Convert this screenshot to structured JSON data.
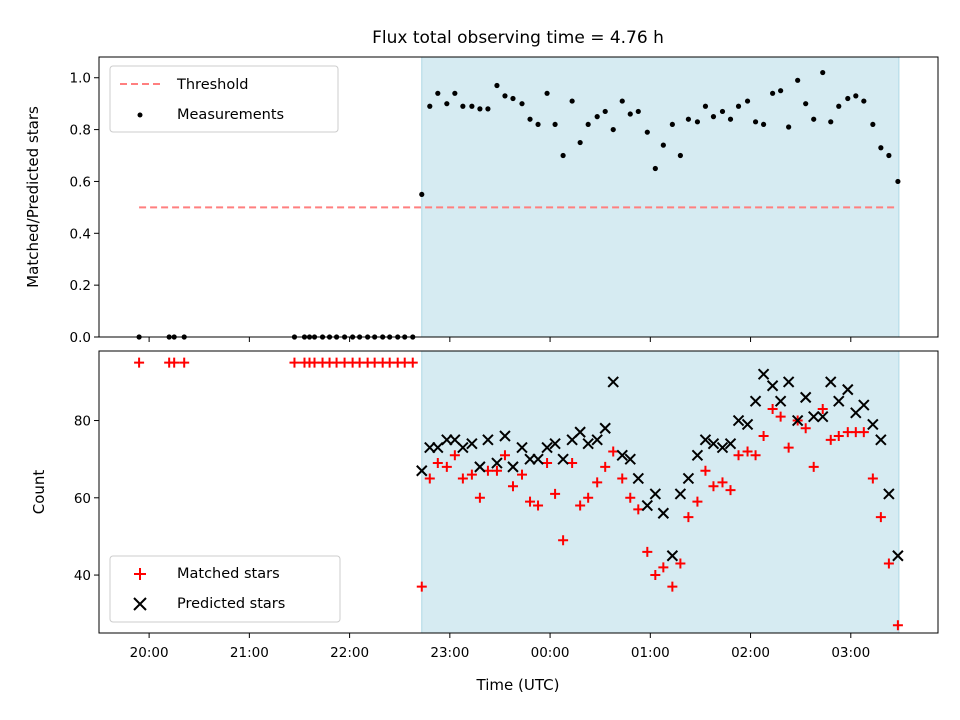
{
  "title": "Flux total observing time = 4.76 h",
  "xlabel": "Time (UTC)",
  "colors": {
    "threshold": "#ff7f7f",
    "shade": "#add8e6",
    "matched": "#ff0000",
    "predicted": "#000000",
    "measurement": "#000000"
  },
  "chart_data": [
    {
      "type": "scatter",
      "ylabel": "Matched/Predicted stars",
      "ylim": [
        0,
        1.08
      ],
      "y_ticks": [
        "0.0",
        "0.2",
        "0.4",
        "0.6",
        "0.8",
        "1.0"
      ],
      "x_unit": "hours",
      "xlim": [
        19.5,
        27.87
      ],
      "shaded_interval": [
        22.72,
        27.48
      ],
      "legend": {
        "position": "top-left",
        "entries": [
          "Threshold",
          "Measurements"
        ]
      },
      "threshold": {
        "name": "Threshold",
        "value": 0.5,
        "x_range": [
          19.9,
          27.45
        ]
      },
      "series": [
        {
          "name": "Measurements",
          "x": [
            19.9,
            20.2,
            20.25,
            20.35,
            21.45,
            21.55,
            21.6,
            21.65,
            21.73,
            21.8,
            21.87,
            21.95,
            22.03,
            22.1,
            22.18,
            22.25,
            22.33,
            22.4,
            22.48,
            22.55,
            22.63,
            22.72,
            22.8,
            22.88,
            22.97,
            23.05,
            23.13,
            23.22,
            23.3,
            23.38,
            23.47,
            23.55,
            23.63,
            23.72,
            23.8,
            23.88,
            23.97,
            24.05,
            24.13,
            24.22,
            24.3,
            24.38,
            24.47,
            24.55,
            24.63,
            24.72,
            24.8,
            24.88,
            24.97,
            25.05,
            25.13,
            25.22,
            25.3,
            25.38,
            25.47,
            25.55,
            25.63,
            25.72,
            25.8,
            25.88,
            25.97,
            26.05,
            26.13,
            26.22,
            26.3,
            26.38,
            26.47,
            26.55,
            26.63,
            26.72,
            26.8,
            26.88,
            26.97,
            27.05,
            27.13,
            27.22,
            27.3,
            27.38,
            27.47
          ],
          "y": [
            0,
            0,
            0,
            0,
            0,
            0,
            0,
            0,
            0,
            0,
            0,
            0,
            0,
            0,
            0,
            0,
            0,
            0,
            0,
            0,
            0,
            0.55,
            0.89,
            0.94,
            0.9,
            0.94,
            0.89,
            0.89,
            0.88,
            0.88,
            0.97,
            0.93,
            0.92,
            0.9,
            0.84,
            0.82,
            0.94,
            0.82,
            0.7,
            0.91,
            0.75,
            0.82,
            0.85,
            0.87,
            0.8,
            0.91,
            0.86,
            0.87,
            0.79,
            0.65,
            0.74,
            0.82,
            0.7,
            0.84,
            0.83,
            0.89,
            0.85,
            0.87,
            0.84,
            0.89,
            0.91,
            0.83,
            0.82,
            0.94,
            0.95,
            0.81,
            0.99,
            0.9,
            0.84,
            1.02,
            0.83,
            0.89,
            0.92,
            0.93,
            0.91,
            0.82,
            0.73,
            0.7,
            0.6
          ]
        }
      ]
    },
    {
      "type": "scatter",
      "ylabel": "Count",
      "ylim": [
        25,
        98
      ],
      "y_ticks": [
        "40",
        "60",
        "80"
      ],
      "x_ticks": [
        "20:00",
        "21:00",
        "22:00",
        "23:00",
        "00:00",
        "01:00",
        "02:00",
        "03:00"
      ],
      "x_unit": "hours",
      "xlim": [
        19.5,
        27.87
      ],
      "shaded_interval": [
        22.72,
        27.48
      ],
      "legend": {
        "position": "bottom-left",
        "entries": [
          "Matched stars",
          "Predicted stars"
        ]
      },
      "series": [
        {
          "name": "Matched stars",
          "x": [
            19.9,
            20.2,
            20.25,
            20.35,
            21.45,
            21.55,
            21.6,
            21.65,
            21.73,
            21.8,
            21.87,
            21.95,
            22.03,
            22.1,
            22.18,
            22.25,
            22.33,
            22.4,
            22.48,
            22.55,
            22.63,
            22.72,
            22.8,
            22.88,
            22.97,
            23.05,
            23.13,
            23.22,
            23.3,
            23.38,
            23.47,
            23.55,
            23.63,
            23.72,
            23.8,
            23.88,
            23.97,
            24.05,
            24.13,
            24.22,
            24.3,
            24.38,
            24.47,
            24.55,
            24.63,
            24.72,
            24.8,
            24.88,
            24.97,
            25.05,
            25.13,
            25.22,
            25.3,
            25.38,
            25.47,
            25.55,
            25.63,
            25.72,
            25.8,
            25.88,
            25.97,
            26.05,
            26.13,
            26.22,
            26.3,
            26.38,
            26.47,
            26.55,
            26.63,
            26.72,
            26.8,
            26.88,
            26.97,
            27.05,
            27.13,
            27.22,
            27.3,
            27.38,
            27.47
          ],
          "y": [
            95,
            95,
            95,
            95,
            95,
            95,
            95,
            95,
            95,
            95,
            95,
            95,
            95,
            95,
            95,
            95,
            95,
            95,
            95,
            95,
            95,
            37,
            65,
            69,
            68,
            71,
            65,
            66,
            60,
            67,
            67,
            71,
            63,
            66,
            59,
            58,
            69,
            61,
            49,
            69,
            58,
            60,
            64,
            68,
            72,
            65,
            60,
            57,
            46,
            40,
            42,
            37,
            43,
            55,
            59,
            67,
            63,
            64,
            62,
            71,
            72,
            71,
            76,
            83,
            81,
            73,
            80,
            78,
            68,
            83,
            75,
            76,
            77,
            77,
            77,
            65,
            55,
            43,
            27
          ]
        },
        {
          "name": "Predicted stars",
          "x": [
            22.72,
            22.8,
            22.88,
            22.97,
            23.05,
            23.13,
            23.22,
            23.3,
            23.38,
            23.47,
            23.55,
            23.63,
            23.72,
            23.8,
            23.88,
            23.97,
            24.05,
            24.13,
            24.22,
            24.3,
            24.38,
            24.47,
            24.55,
            24.63,
            24.72,
            24.8,
            24.88,
            24.97,
            25.05,
            25.13,
            25.22,
            25.3,
            25.38,
            25.47,
            25.55,
            25.63,
            25.72,
            25.8,
            25.88,
            25.97,
            26.05,
            26.13,
            26.22,
            26.3,
            26.38,
            26.47,
            26.55,
            26.63,
            26.72,
            26.8,
            26.88,
            26.97,
            27.05,
            27.13,
            27.22,
            27.3,
            27.38,
            27.47
          ],
          "y": [
            67,
            73,
            73,
            75,
            75,
            73,
            74,
            68,
            75,
            69,
            76,
            68,
            73,
            70,
            70,
            73,
            74,
            70,
            75,
            77,
            74,
            75,
            78,
            90,
            71,
            70,
            65,
            58,
            61,
            56,
            45,
            61,
            65,
            71,
            75,
            74,
            73,
            74,
            80,
            79,
            85,
            92,
            89,
            85,
            90,
            80,
            86,
            81,
            81,
            90,
            85,
            88,
            82,
            84,
            79,
            75,
            61,
            45
          ]
        }
      ]
    }
  ]
}
